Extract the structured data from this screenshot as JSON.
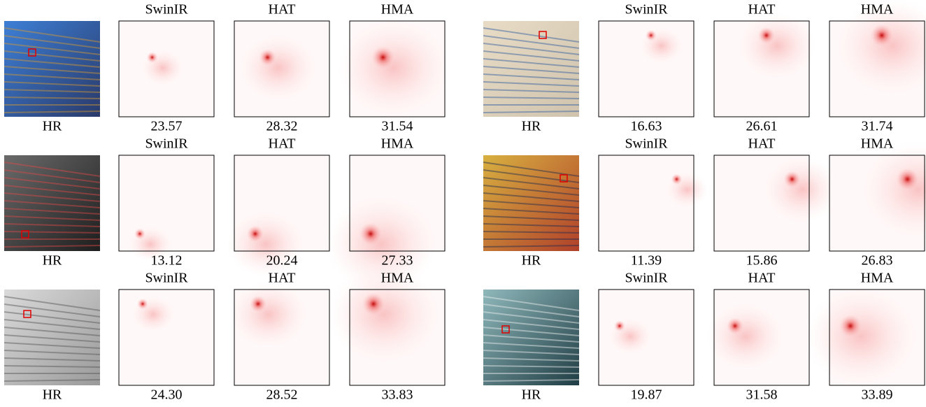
{
  "panels": [
    {
      "hr_label": "HR",
      "methods": [
        {
          "name": "SwinIR",
          "score": "23.57"
        },
        {
          "name": "HAT",
          "score": "28.32"
        },
        {
          "name": "HMA",
          "score": "31.54"
        }
      ]
    },
    {
      "hr_label": "HR",
      "methods": [
        {
          "name": "SwinIR",
          "score": "16.63"
        },
        {
          "name": "HAT",
          "score": "26.61"
        },
        {
          "name": "HMA",
          "score": "31.74"
        }
      ]
    },
    {
      "hr_label": "HR",
      "methods": [
        {
          "name": "SwinIR",
          "score": "13.12"
        },
        {
          "name": "HAT",
          "score": "20.24"
        },
        {
          "name": "HMA",
          "score": "27.33"
        }
      ]
    },
    {
      "hr_label": "HR",
      "methods": [
        {
          "name": "SwinIR",
          "score": "11.39"
        },
        {
          "name": "HAT",
          "score": "15.86"
        },
        {
          "name": "HMA",
          "score": "26.83"
        }
      ]
    },
    {
      "hr_label": "HR",
      "methods": [
        {
          "name": "SwinIR",
          "score": "24.30"
        },
        {
          "name": "HAT",
          "score": "28.52"
        },
        {
          "name": "HMA",
          "score": "33.83"
        }
      ]
    },
    {
      "hr_label": "HR",
      "methods": [
        {
          "name": "SwinIR",
          "score": "19.87"
        },
        {
          "name": "HAT",
          "score": "31.58"
        },
        {
          "name": "HMA",
          "score": "33.89"
        }
      ]
    }
  ]
}
